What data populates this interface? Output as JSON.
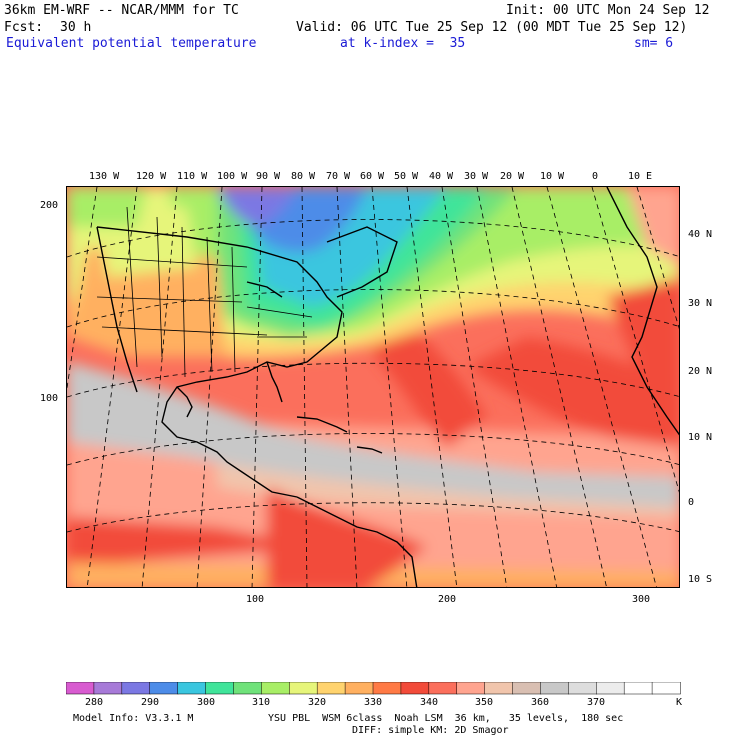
{
  "header": {
    "model_title": "36km EM-WRF -- NCAR/MMM for TC",
    "init": "Init: 00 UTC Mon 24 Sep 12",
    "fcst_label": "Fcst:",
    "fcst_value": "30 h",
    "valid": "Valid: 06 UTC Tue 25 Sep 12 (00 MDT Tue 25 Sep 12)",
    "field_name": "Equivalent potential temperature",
    "k_index": "at k-index =  35",
    "smoothing": "sm= 6"
  },
  "map": {
    "lon_labels": [
      "130 W",
      "120 W",
      "110 W",
      "100 W",
      "90 W",
      "80 W",
      "70 W",
      "60 W",
      "50 W",
      "40 W",
      "30 W",
      "20 W",
      "10 W",
      "0",
      "10 E"
    ],
    "lat_labels": [
      "40 N",
      "30 N",
      "20 N",
      "10 N",
      "0",
      "10 S"
    ],
    "grid_y_labels": [
      "200",
      "100"
    ],
    "grid_x_labels": [
      "100",
      "200",
      "300"
    ]
  },
  "legend": {
    "unit": "K",
    "tick_labels": [
      "280",
      "290",
      "300",
      "310",
      "320",
      "330",
      "340",
      "350",
      "360",
      "370"
    ],
    "colors": [
      "#d85bd0",
      "#a77ad8",
      "#7b78e3",
      "#4d8ce8",
      "#3ac6df",
      "#40e49a",
      "#6fe27a",
      "#a8ee66",
      "#e6f57a",
      "#ffd36e",
      "#ffb060",
      "#ff7a45",
      "#f24b3a",
      "#fb6f5c",
      "#ffa48f",
      "#f1c5ac",
      "#d9bfb2",
      "#c8c8c8",
      "#dddddd",
      "#ececec",
      "#ffffff",
      "#ffffff"
    ]
  },
  "footer": {
    "model_info": "Model Info: V3.3.1 M",
    "physics": "YSU PBL  WSM 6class  Noah LSM  36 km,   35 levels,  180 sec",
    "diffusion": "DIFF: simple KM: 2D Smagor"
  }
}
